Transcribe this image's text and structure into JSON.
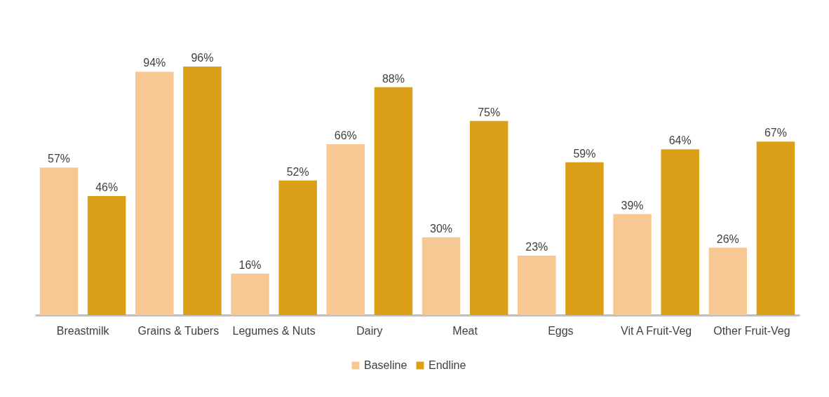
{
  "chart_data": {
    "type": "bar",
    "categories": [
      "Breastmilk",
      "Grains & Tubers",
      "Legumes & Nuts",
      "Dairy",
      "Meat",
      "Eggs",
      "Vit A Fruit-Veg",
      "Other Fruit-Veg"
    ],
    "series": [
      {
        "name": "Baseline",
        "color": "#f8c894",
        "values": [
          57,
          94,
          16,
          66,
          30,
          23,
          39,
          26
        ],
        "value_labels": [
          "57%",
          "94%",
          "16%",
          "66%",
          "30%",
          "23%",
          "39%",
          "26%"
        ]
      },
      {
        "name": "Endline",
        "color": "#dba017",
        "values": [
          46,
          96,
          52,
          88,
          75,
          59,
          64,
          67
        ],
        "value_labels": [
          "46%",
          "96%",
          "52%",
          "88%",
          "75%",
          "59%",
          "64%",
          "67%"
        ]
      }
    ],
    "legend": "bottom"
  }
}
